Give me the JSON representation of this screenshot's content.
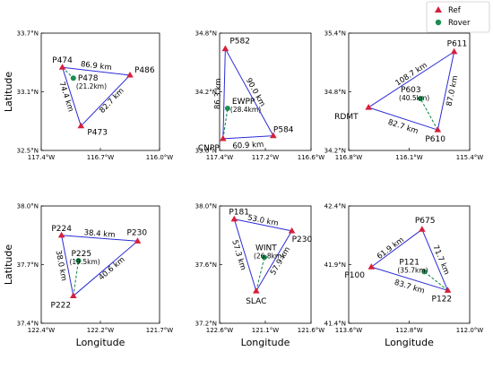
{
  "legend": {
    "placement": "top-right",
    "entries": [
      {
        "label": "Ref",
        "marker": "triangle",
        "color": "#d61f3a"
      },
      {
        "label": "Rover",
        "marker": "circle",
        "color": "#1a8f4f"
      }
    ]
  },
  "colors": {
    "baseline": "#2b2bd6",
    "rover_link": "#1a8f4f",
    "ref": "#d61f3a",
    "rover": "#1a8f4f"
  },
  "chart_data": [
    {
      "type": "scatter",
      "xlabel": "",
      "ylabel": "Latitude",
      "xlim": [
        117.4,
        116.0
      ],
      "ylim": [
        32.5,
        33.7
      ],
      "xticks": [
        117.4,
        116.7,
        116.0
      ],
      "xticklabels": [
        "117.4°W",
        "116.7°W",
        "116.0°W"
      ],
      "yticks": [
        32.5,
        33.1,
        33.7
      ],
      "yticklabels": [
        "32.5°N",
        "33.1°N",
        "33.7°N"
      ],
      "refs": [
        {
          "name": "P474",
          "lon": 117.15,
          "lat": 33.35
        },
        {
          "name": "P486",
          "lon": 116.35,
          "lat": 33.27
        },
        {
          "name": "P473",
          "lon": 116.93,
          "lat": 32.75
        }
      ],
      "rover": {
        "name": "P478",
        "dist": "(21.2km)",
        "lon": 117.02,
        "lat": 33.24
      },
      "edges": [
        {
          "label": "86.9 km",
          "from": 0,
          "to": 1
        },
        {
          "label": "82.7 km",
          "from": 1,
          "to": 2
        },
        {
          "label": "74.4 km",
          "from": 0,
          "to": 2
        }
      ],
      "rover_link_from": 0
    },
    {
      "type": "scatter",
      "xlabel": "",
      "ylabel": "",
      "xlim": [
        117.4,
        116.6
      ],
      "ylim": [
        33.6,
        34.8
      ],
      "xticks": [
        117.4,
        117.2,
        116.6
      ],
      "xticklabels": [
        "117.4°W",
        "117.2°W",
        "116.6°W"
      ],
      "yticks": [
        33.6,
        34.2,
        34.8
      ],
      "yticklabels": [
        "33.6°N",
        "34.2°N",
        "34.8°N"
      ],
      "refs": [
        {
          "name": "P582",
          "lon": 117.35,
          "lat": 34.64
        },
        {
          "name": "P584",
          "lon": 116.93,
          "lat": 33.75
        },
        {
          "name": "CNPP",
          "lon": 117.37,
          "lat": 33.72
        }
      ],
      "rover": {
        "name": "EWPP",
        "dist": "(28.4km)",
        "lon": 117.33,
        "lat": 34.03
      },
      "edges": [
        {
          "label": "90.0 km",
          "from": 0,
          "to": 1
        },
        {
          "label": "60.9 km",
          "from": 2,
          "to": 1
        },
        {
          "label": "86.3 km",
          "from": 0,
          "to": 2
        }
      ],
      "rover_link_from": 2
    },
    {
      "type": "scatter",
      "xlabel": "",
      "ylabel": "",
      "xlim": [
        116.8,
        115.4
      ],
      "ylim": [
        34.2,
        35.4
      ],
      "xticks": [
        116.8,
        116.1,
        115.4
      ],
      "xticklabels": [
        "116.8°W",
        "116.1°W",
        "115.4°W"
      ],
      "yticks": [
        34.2,
        34.8,
        35.4
      ],
      "yticklabels": [
        "34.2°N",
        "34.8°N",
        "35.4°N"
      ],
      "refs": [
        {
          "name": "P611",
          "lon": 115.58,
          "lat": 35.21
        },
        {
          "name": "RDMT",
          "lon": 116.57,
          "lat": 34.64
        },
        {
          "name": "P610",
          "lon": 115.77,
          "lat": 34.41
        }
      ],
      "rover": {
        "name": "P603",
        "dist": "(40.5km)",
        "lon": 115.97,
        "lat": 34.73
      },
      "edges": [
        {
          "label": "108.7 km",
          "from": 1,
          "to": 0
        },
        {
          "label": "87.0 km",
          "from": 0,
          "to": 2
        },
        {
          "label": "82.7 km",
          "from": 1,
          "to": 2
        }
      ],
      "rover_link_from": 2
    },
    {
      "type": "scatter",
      "xlabel": "Longitude",
      "ylabel": "Latitude",
      "xlim": [
        122.4,
        121.7
      ],
      "ylim": [
        37.4,
        38.0
      ],
      "xticks": [
        122.4,
        122.2,
        121.7
      ],
      "xticklabels": [
        "122.4°W",
        "122.2°W",
        "121.7°W"
      ],
      "yticks": [
        37.4,
        37.7,
        38.0
      ],
      "yticklabels": [
        "37.4°N",
        "37.7°N",
        "38.0°N"
      ],
      "refs": [
        {
          "name": "P224",
          "lon": 122.28,
          "lat": 37.85
        },
        {
          "name": "P230",
          "lon": 121.83,
          "lat": 37.82
        },
        {
          "name": "P222",
          "lon": 122.21,
          "lat": 37.54
        }
      ],
      "rover": {
        "name": "P225",
        "dist": "(19.5km)",
        "lon": 122.18,
        "lat": 37.72
      },
      "edges": [
        {
          "label": "38.4 km",
          "from": 0,
          "to": 1
        },
        {
          "label": "40.6 km",
          "from": 1,
          "to": 2
        },
        {
          "label": "38.0 km",
          "from": 0,
          "to": 2
        }
      ],
      "rover_link_from": 2
    },
    {
      "type": "scatter",
      "xlabel": "Longitude",
      "ylabel": "",
      "xlim": [
        122.6,
        121.6
      ],
      "ylim": [
        37.2,
        38.0
      ],
      "xticks": [
        122.6,
        121.1,
        121.6
      ],
      "xticklabels": [
        "122.6°W",
        "121.1°W",
        "121.6°W"
      ],
      "yticks": [
        37.2,
        37.6,
        38.0
      ],
      "yticklabels": [
        "37.2°N",
        "37.6°N",
        "38.0°N"
      ],
      "refs": [
        {
          "name": "P181",
          "lon": 122.44,
          "lat": 37.91
        },
        {
          "name": "P230",
          "lon": 121.81,
          "lat": 37.83
        },
        {
          "name": "SLAC",
          "lon": 122.2,
          "lat": 37.42
        }
      ],
      "rover": {
        "name": "WINT",
        "dist": "(26.8km)",
        "lon": 122.11,
        "lat": 37.65
      },
      "edges": [
        {
          "label": "53.0 km",
          "from": 0,
          "to": 1
        },
        {
          "label": "57.9 km",
          "from": 1,
          "to": 2
        },
        {
          "label": "57.3 km",
          "from": 0,
          "to": 2
        }
      ],
      "rover_link_from": 2
    },
    {
      "type": "scatter",
      "xlabel": "Longitude",
      "ylabel": "",
      "xlim": [
        113.6,
        112.0
      ],
      "ylim": [
        41.4,
        42.4
      ],
      "xticks": [
        113.6,
        112.8,
        112.0
      ],
      "xticklabels": [
        "113.6°W",
        "112.8°W",
        "112.0°W"
      ],
      "yticks": [
        41.4,
        41.9,
        42.4
      ],
      "yticklabels": [
        "41.4°N",
        "41.9°N",
        "42.4°N"
      ],
      "refs": [
        {
          "name": "P675",
          "lon": 112.63,
          "lat": 42.2
        },
        {
          "name": "P100",
          "lon": 113.3,
          "lat": 41.88
        },
        {
          "name": "P122",
          "lon": 112.29,
          "lat": 41.68
        }
      ],
      "rover": {
        "name": "P121",
        "dist": "(35.7km)",
        "lon": 112.6,
        "lat": 41.84
      },
      "edges": [
        {
          "label": "61.9 km",
          "from": 1,
          "to": 0
        },
        {
          "label": "71.7 km",
          "from": 0,
          "to": 2
        },
        {
          "label": "83.7 km",
          "from": 1,
          "to": 2
        }
      ],
      "rover_link_from": 2
    }
  ]
}
